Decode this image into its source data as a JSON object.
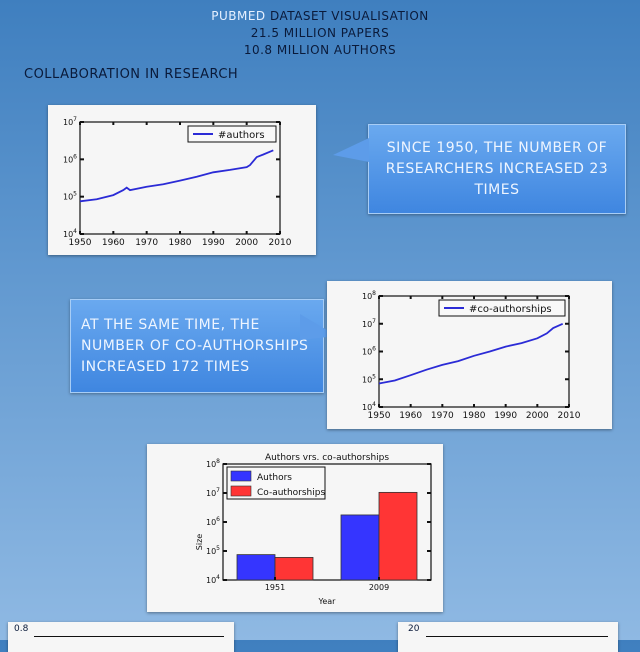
{
  "header": {
    "brand": "PUBMED",
    "title_rest": "DATASET VISUALISATION",
    "papers": "21.5 MILLION PAPERS",
    "authors": "10.8 MILLION AUTHORS"
  },
  "section_title": "COLLABORATION IN RESEARCH",
  "callouts": {
    "first": "SINCE 1950, THE NUMBER OF RESEARCHERS INCREASED 23 TIMES",
    "second": "AT THE SAME TIME, THE NUMBER OF CO-AUTHORSHIPS INCREASED 172 TIMES"
  },
  "bottom_partial": {
    "left_tick": "0.8",
    "right_tick": "20"
  },
  "colors": {
    "line": "#2b2bd6",
    "authors_bar": "#3535ff",
    "coauth_bar": "#ff3535"
  },
  "chart_data": [
    {
      "type": "line",
      "title": "",
      "xlabel": "",
      "ylabel": "",
      "scale": "log",
      "xlim": [
        1950,
        2010
      ],
      "ylim": [
        10000,
        10000000
      ],
      "x_ticks": [
        "1950",
        "1960",
        "1970",
        "1980",
        "1990",
        "2000",
        "2010"
      ],
      "y_ticks": [
        "10^4",
        "10^5",
        "10^6",
        "10^7"
      ],
      "legend": "top-right",
      "series": [
        {
          "name": "#authors",
          "x": [
            1950,
            1955,
            1960,
            1963,
            1964,
            1965,
            1970,
            1975,
            1980,
            1985,
            1990,
            1995,
            2000,
            2001,
            2003,
            2005,
            2008
          ],
          "y": [
            75000,
            85000,
            110000,
            150000,
            175000,
            150000,
            185000,
            215000,
            270000,
            340000,
            450000,
            520000,
            620000,
            700000,
            1150000,
            1350000,
            1750000
          ]
        }
      ]
    },
    {
      "type": "line",
      "title": "",
      "xlabel": "",
      "ylabel": "",
      "scale": "log",
      "xlim": [
        1950,
        2010
      ],
      "ylim": [
        10000,
        100000000
      ],
      "x_ticks": [
        "1950",
        "1960",
        "1970",
        "1980",
        "1990",
        "2000",
        "2010"
      ],
      "y_ticks": [
        "10^4",
        "10^5",
        "10^6",
        "10^7",
        "10^8"
      ],
      "legend": "top-right",
      "series": [
        {
          "name": "#co-authorships",
          "x": [
            1950,
            1955,
            1960,
            1965,
            1970,
            1975,
            1980,
            1985,
            1990,
            1995,
            2000,
            2003,
            2005,
            2008
          ],
          "y": [
            70000,
            90000,
            140000,
            220000,
            330000,
            450000,
            700000,
            1000000,
            1500000,
            2000000,
            3000000,
            4500000,
            7000000,
            10000000
          ]
        }
      ]
    },
    {
      "type": "bar",
      "title": "Authors vrs. co-authorships",
      "xlabel": "Year",
      "ylabel": "Size",
      "scale": "log",
      "ylim": [
        10000,
        100000000
      ],
      "y_ticks": [
        "10^4",
        "10^5",
        "10^6",
        "10^7",
        "10^8"
      ],
      "categories": [
        "1951",
        "2009"
      ],
      "legend": "top-left",
      "series": [
        {
          "name": "Authors",
          "values": [
            75000,
            1750000
          ]
        },
        {
          "name": "Co-authorships",
          "values": [
            60000,
            10500000
          ]
        }
      ]
    }
  ]
}
